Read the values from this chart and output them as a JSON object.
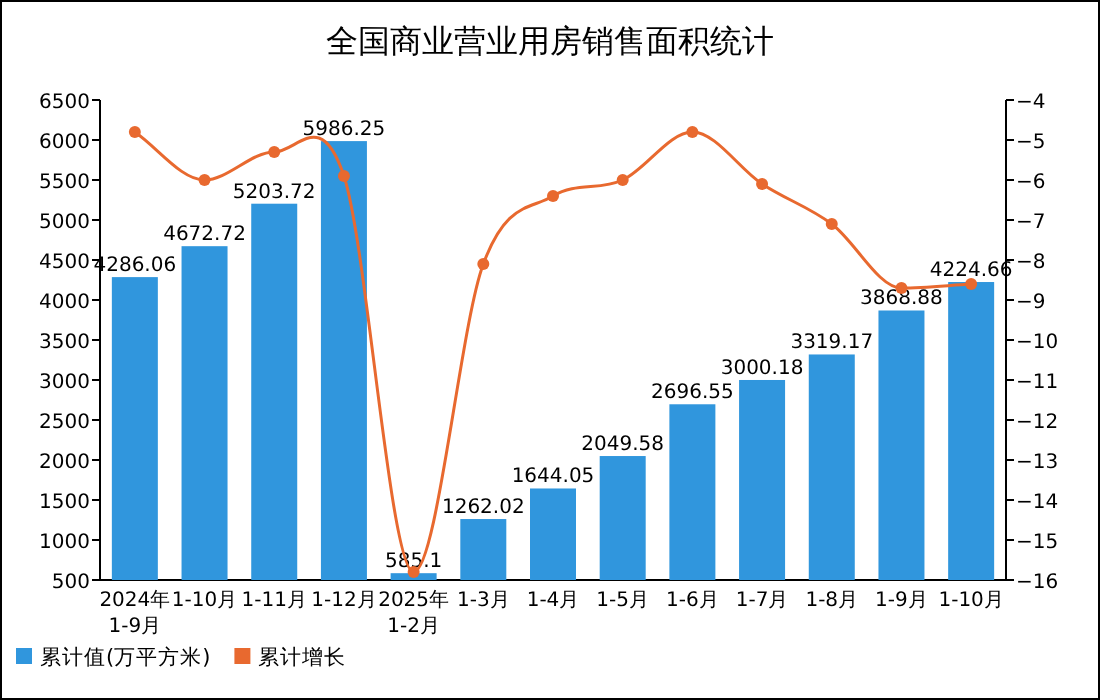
{
  "chart_data": {
    "type": "bar",
    "title": "全国商业营业用房销售面积统计",
    "categories": [
      "2024年\n1-9月",
      "1-10月",
      "1-11月",
      "1-12月",
      "2025年\n1-2月",
      "1-3月",
      "1-4月",
      "1-5月",
      "1-6月",
      "1-7月",
      "1-8月",
      "1-9月",
      "1-10月"
    ],
    "series": [
      {
        "name": "累计值(万平方米)",
        "color": "#3096dd",
        "values": [
          4286.06,
          4672.72,
          5203.72,
          5986.25,
          585.1,
          1262.02,
          1644.05,
          2049.58,
          2696.55,
          3000.18,
          3319.17,
          3868.88,
          4224.66
        ],
        "value_labels": [
          "4286.06",
          "4672.72",
          "5203.72",
          "5986.25",
          "585.1",
          "1262.02",
          "1644.05",
          "2049.58",
          "2696.55",
          "3000.18",
          "3319.17",
          "3868.88",
          "4224.66"
        ]
      },
      {
        "name": "累计增长",
        "type": "line",
        "axis": "y2",
        "color": "#e8692f",
        "marker": "circle",
        "values": [
          -4.8,
          -6.0,
          -5.3,
          -5.9,
          -15.8,
          -8.1,
          -6.4,
          -6.0,
          -4.8,
          -6.1,
          -7.1,
          -8.7,
          -8.6
        ]
      }
    ],
    "ylim": [
      500,
      6500
    ],
    "yticks": [
      500,
      1000,
      1500,
      2000,
      2500,
      3000,
      3500,
      4000,
      4500,
      5000,
      5500,
      6000,
      6500
    ],
    "y2lim": [
      -16,
      -4
    ],
    "y2ticks": [
      -16,
      -15,
      -14,
      -13,
      -12,
      -11,
      -10,
      -9,
      -8,
      -7,
      -6,
      -5,
      -4
    ],
    "legend": "bottom left",
    "grid": false
  }
}
